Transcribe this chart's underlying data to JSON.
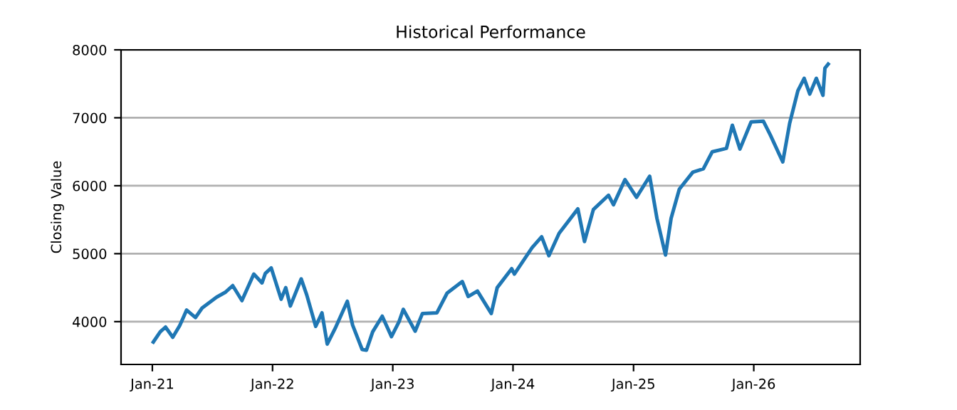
{
  "chart_data": {
    "type": "line",
    "title": "Historical Performance",
    "ylabel": "Closing Value",
    "x": [
      "2021-01-04",
      "2021-01-25",
      "2021-02-10",
      "2021-03-04",
      "2021-03-25",
      "2021-04-15",
      "2021-05-12",
      "2021-06-01",
      "2021-07-15",
      "2021-08-10",
      "2021-09-02",
      "2021-09-30",
      "2021-11-05",
      "2021-11-30",
      "2021-12-10",
      "2021-12-28",
      "2022-01-27",
      "2022-02-10",
      "2022-02-24",
      "2022-03-29",
      "2022-04-15",
      "2022-05-12",
      "2022-05-31",
      "2022-06-16",
      "2022-07-10",
      "2022-08-16",
      "2022-09-01",
      "2022-09-30",
      "2022-10-13",
      "2022-11-01",
      "2022-11-30",
      "2022-12-28",
      "2023-01-20",
      "2023-02-02",
      "2023-03-10",
      "2023-04-01",
      "2023-05-15",
      "2023-06-15",
      "2023-07-31",
      "2023-08-18",
      "2023-09-15",
      "2023-10-27",
      "2023-11-14",
      "2023-12-28",
      "2024-01-05",
      "2024-02-28",
      "2024-03-28",
      "2024-04-19",
      "2024-05-20",
      "2024-07-16",
      "2024-08-05",
      "2024-09-01",
      "2024-10-17",
      "2024-11-01",
      "2024-12-06",
      "2025-01-10",
      "2025-02-19",
      "2025-03-13",
      "2025-04-08",
      "2025-04-25",
      "2025-05-20",
      "2025-06-30",
      "2025-08-01",
      "2025-08-28",
      "2025-10-10",
      "2025-10-28",
      "2025-11-20",
      "2025-12-24",
      "2026-01-30",
      "2026-02-20",
      "2026-03-30",
      "2026-04-20",
      "2026-05-15",
      "2026-06-03",
      "2026-06-20",
      "2026-07-10",
      "2026-07-30",
      "2026-08-05",
      "2026-08-15"
    ],
    "series": [
      {
        "color": "#1f77b4",
        "values": [
          3700,
          3850,
          3920,
          3770,
          3940,
          4170,
          4060,
          4200,
          4360,
          4430,
          4530,
          4310,
          4700,
          4570,
          4710,
          4790,
          4330,
          4500,
          4230,
          4630,
          4390,
          3930,
          4130,
          3670,
          3900,
          4300,
          3950,
          3590,
          3580,
          3850,
          4080,
          3780,
          4000,
          4180,
          3860,
          4120,
          4130,
          4420,
          4590,
          4370,
          4450,
          4120,
          4500,
          4780,
          4700,
          5090,
          5250,
          4970,
          5300,
          5660,
          5180,
          5650,
          5860,
          5720,
          6090,
          5830,
          6140,
          5520,
          4980,
          5520,
          5950,
          6200,
          6250,
          6500,
          6550,
          6890,
          6540,
          6940,
          6950,
          6750,
          6350,
          6920,
          7400,
          7580,
          7350,
          7580,
          7330,
          7730,
          7790
        ]
      }
    ],
    "xlim": [
      "2020-09-28",
      "2026-11-20"
    ],
    "xticks": [
      {
        "value": "2021-01-01",
        "label": "Jan-21"
      },
      {
        "value": "2022-01-01",
        "label": "Jan-22"
      },
      {
        "value": "2023-01-01",
        "label": "Jan-23"
      },
      {
        "value": "2024-01-01",
        "label": "Jan-24"
      },
      {
        "value": "2025-01-01",
        "label": "Jan-25"
      },
      {
        "value": "2026-01-01",
        "label": "Jan-26"
      }
    ],
    "ylim": [
      3370,
      8000
    ],
    "yticks": [
      4000,
      5000,
      6000,
      7000,
      8000
    ],
    "grid": "y",
    "line_style": "solid",
    "marker": "none",
    "legend": false
  }
}
